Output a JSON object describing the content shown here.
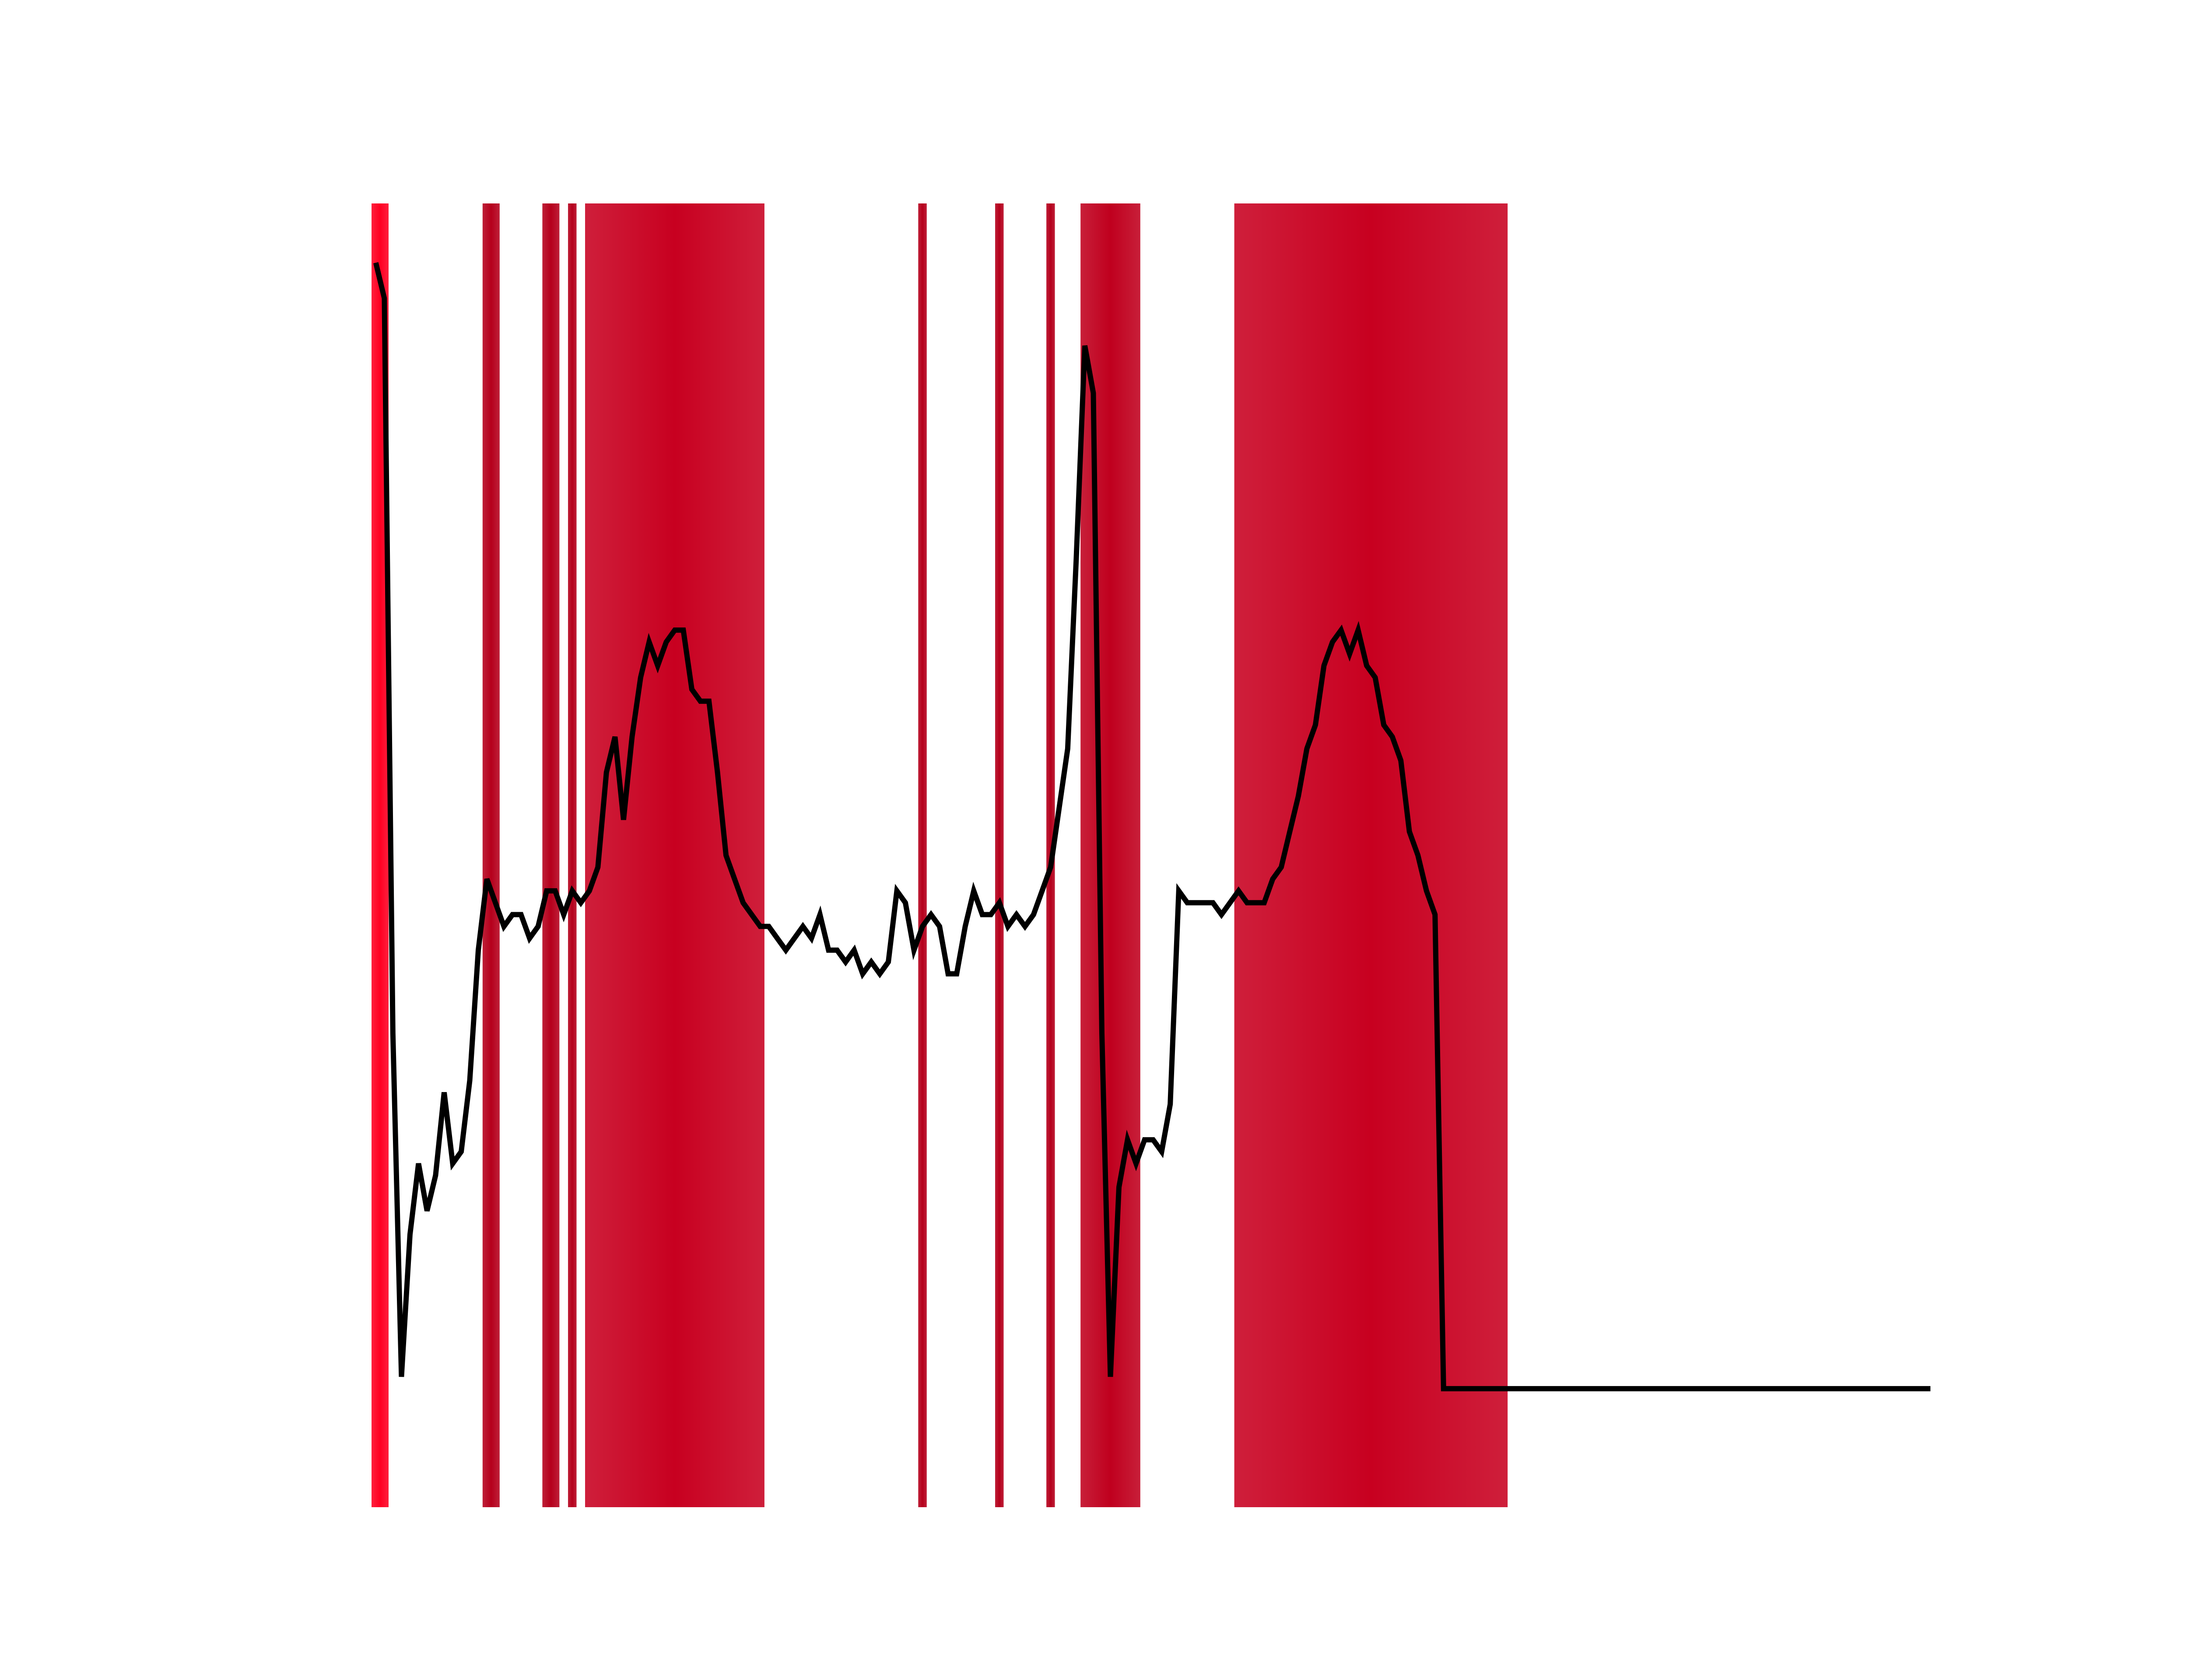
{
  "chart_data": {
    "type": "line",
    "title": "",
    "xlabel": "",
    "ylabel": "",
    "axes_visible": false,
    "grid": false,
    "legend": "none",
    "xlim": [
      -2.5,
      185
    ],
    "ylim": [
      -0.1,
      1.0
    ],
    "line_color": "#000000",
    "series": [
      {
        "values": [
          0.95,
          0.92,
          0.3,
          0.01,
          0.13,
          0.19,
          0.15,
          0.18,
          0.25,
          0.19,
          0.2,
          0.26,
          0.37,
          0.43,
          0.41,
          0.39,
          0.4,
          0.4,
          0.38,
          0.39,
          0.42,
          0.42,
          0.4,
          0.42,
          0.41,
          0.42,
          0.44,
          0.52,
          0.55,
          0.48,
          0.55,
          0.6,
          0.63,
          0.61,
          0.63,
          0.64,
          0.64,
          0.59,
          0.58,
          0.58,
          0.52,
          0.45,
          0.43,
          0.41,
          0.4,
          0.39,
          0.39,
          0.38,
          0.37,
          0.38,
          0.39,
          0.38,
          0.4,
          0.37,
          0.37,
          0.36,
          0.37,
          0.35,
          0.36,
          0.35,
          0.36,
          0.42,
          0.41,
          0.37,
          0.39,
          0.4,
          0.39,
          0.35,
          0.35,
          0.39,
          0.42,
          0.4,
          0.4,
          0.41,
          0.39,
          0.4,
          0.39,
          0.4,
          0.42,
          0.44,
          0.49,
          0.54,
          0.7,
          0.88,
          0.84,
          0.3,
          0.01,
          0.17,
          0.21,
          0.19,
          0.21,
          0.21,
          0.2,
          0.24,
          0.42,
          0.41,
          0.41,
          0.41,
          0.41,
          0.4,
          0.41,
          0.42,
          0.41,
          0.41,
          0.41,
          0.43,
          0.44,
          0.47,
          0.5,
          0.54,
          0.56,
          0.61,
          0.63,
          0.64,
          0.62,
          0.64,
          0.61,
          0.6,
          0.56,
          0.55,
          0.53,
          0.47,
          0.45,
          0.42,
          0.4,
          0.0,
          0.0,
          0.0,
          0.0,
          0.0,
          0.0,
          0.0,
          0.0,
          0.0,
          0.0,
          0.0,
          0.0,
          0.0,
          0.0,
          0.0,
          0.0,
          0.0,
          0.0,
          0.0,
          0.0,
          0.0,
          0.0,
          0.0,
          0.0,
          0.0,
          0.0,
          0.0,
          0.0,
          0.0,
          0.0,
          0.0,
          0.0,
          0.0,
          0.0,
          0.0,
          0.0,
          0.0,
          0.0,
          0.0,
          0.0,
          0.0,
          0.0,
          0.0,
          0.0,
          0.0,
          0.0,
          0.0,
          0.0,
          0.0,
          0.0,
          0.0,
          0.0,
          0.0,
          0.0,
          0.0,
          0.0,
          0.0,
          0.0
        ],
        "x_step": 1,
        "x_start": 0,
        "color": "#000000"
      }
    ],
    "highlight_bands": [
      {
        "x_start": -0.5,
        "x_end": 1.5,
        "color": "#ff0022"
      },
      {
        "x_start": 12.5,
        "x_end": 14.5,
        "color": "#b5001c"
      },
      {
        "x_start": 19.5,
        "x_end": 21.5,
        "color": "#b5001c"
      },
      {
        "x_start": 22.5,
        "x_end": 23.5,
        "color": "#b5001c"
      },
      {
        "x_start": 24.5,
        "x_end": 45.5,
        "color": "#c80020"
      },
      {
        "x_start": 63.5,
        "x_end": 64.5,
        "color": "#b5001c"
      },
      {
        "x_start": 72.5,
        "x_end": 73.5,
        "color": "#b5001c"
      },
      {
        "x_start": 78.5,
        "x_end": 79.5,
        "color": "#b5001c"
      },
      {
        "x_start": 82.5,
        "x_end": 89.5,
        "color": "#c0001e"
      },
      {
        "x_start": 100.5,
        "x_end": 132.5,
        "color": "#c80020"
      }
    ]
  }
}
